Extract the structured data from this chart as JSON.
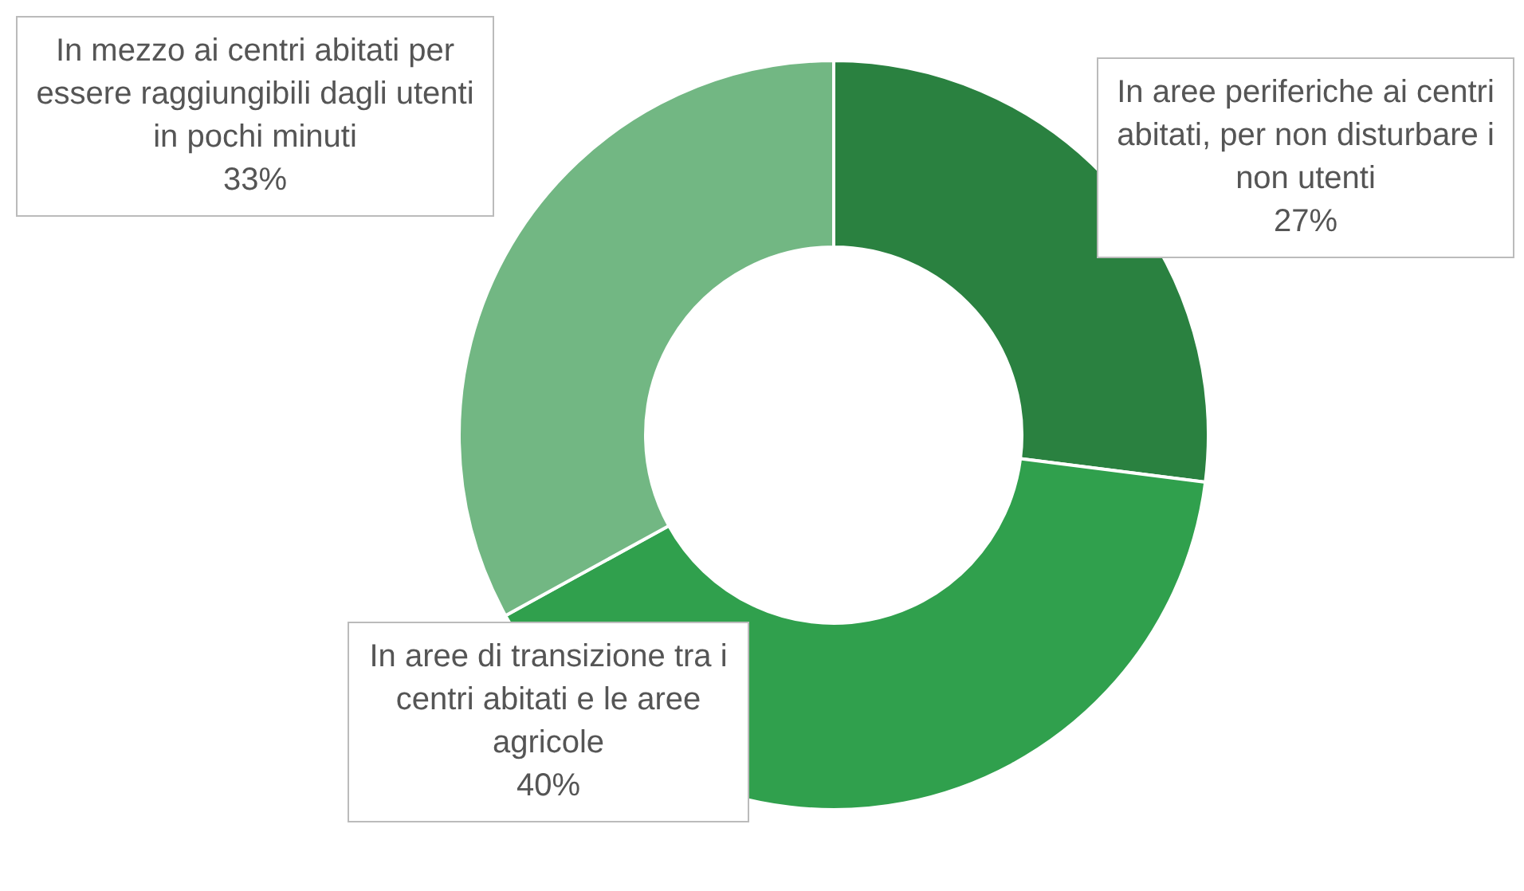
{
  "chart_data": {
    "type": "donut",
    "categories": [
      "In aree periferiche ai centri abitati, per non disturbare i non utenti",
      "In aree di transizione tra i centri abitati e le aree agricole",
      "In mezzo ai centri abitati per essere raggiungibili dagli utenti in pochi minuti"
    ],
    "values": [
      27,
      40,
      33
    ],
    "colors": [
      "#2a8140",
      "#30a04d",
      "#72b783"
    ],
    "value_labels": [
      "27%",
      "40%",
      "33%"
    ]
  }
}
